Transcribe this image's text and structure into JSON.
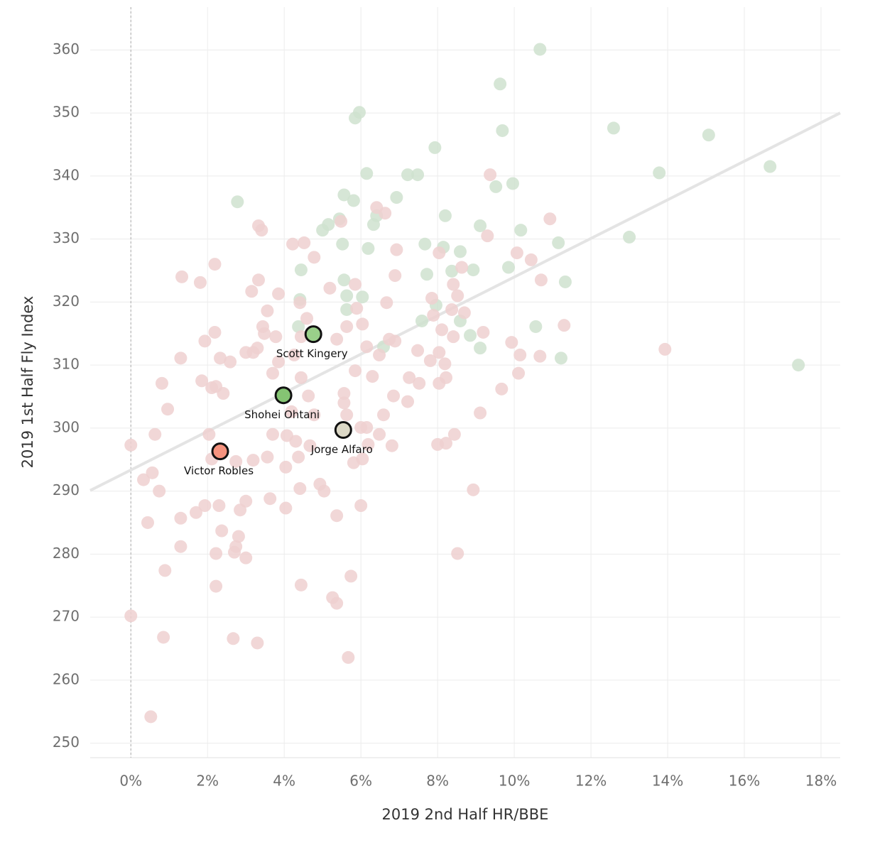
{
  "chart_data": {
    "type": "scatter",
    "x_label": "2019 2nd Half HR/BBE",
    "y_label": "2019 1st Half Fly Index",
    "xlim": [
      -1.06,
      18.5
    ],
    "ylim": [
      247.7,
      366.8
    ],
    "xticks": [
      {
        "value": 0,
        "label": "0%"
      },
      {
        "value": 2,
        "label": "2%"
      },
      {
        "value": 4,
        "label": "4%"
      },
      {
        "value": 6,
        "label": "6%"
      },
      {
        "value": 8,
        "label": "8%"
      },
      {
        "value": 10,
        "label": "10%"
      },
      {
        "value": 12,
        "label": "12%"
      },
      {
        "value": 14,
        "label": "14%"
      },
      {
        "value": 16,
        "label": "16%"
      },
      {
        "value": 18,
        "label": "18%"
      }
    ],
    "yticks": [
      250,
      260,
      270,
      280,
      290,
      300,
      310,
      320,
      330,
      340,
      350,
      360
    ],
    "grid": true,
    "reference_x": 0,
    "trend_line": {
      "color": "#e4e4e4",
      "x": [
        -1.06,
        18.5
      ],
      "values": [
        290.1,
        350.0
      ]
    },
    "series": [
      {
        "color": "#cfe2cf",
        "x": [
          10.67,
          9.63,
          9.69,
          12.59,
          15.07,
          16.67,
          13.78,
          7.48,
          9.96,
          9.52,
          7.93,
          6.93,
          2.78,
          5.81,
          5.56,
          8.2,
          5.44,
          9.11,
          10.17,
          13.0,
          11.15,
          9.85,
          8.93,
          4.44,
          7.72,
          11.33,
          8.59,
          10.56,
          8.85,
          9.11,
          11.22,
          17.41,
          4.37,
          5.96,
          5.85,
          6.15,
          7.22,
          6.41,
          5.0,
          5.15,
          5.52,
          7.67,
          8.15,
          6.19,
          8.59,
          5.56,
          5.63,
          4.41,
          6.04,
          7.59,
          7.96,
          5.63,
          8.37,
          6.59,
          6.33
        ],
        "values": [
          360.1,
          354.6,
          347.2,
          347.6,
          346.5,
          341.5,
          340.5,
          340.2,
          338.8,
          338.3,
          344.5,
          336.6,
          335.9,
          336.1,
          337.0,
          333.7,
          333.2,
          332.1,
          331.4,
          330.3,
          329.4,
          325.5,
          325.1,
          325.1,
          324.4,
          323.2,
          317.0,
          316.1,
          314.7,
          312.7,
          311.1,
          310.0,
          316.1,
          350.1,
          349.2,
          340.4,
          340.2,
          333.7,
          331.4,
          332.3,
          329.2,
          329.2,
          328.7,
          328.5,
          328.0,
          323.5,
          321.0,
          320.4,
          320.8,
          317.0,
          319.5,
          318.8,
          324.9,
          312.9,
          332.3
        ]
      },
      {
        "color": "#efd0d0",
        "x": [
          0,
          0.33,
          0.56,
          0.74,
          0.44,
          0.89,
          0,
          0.85,
          0.52,
          0.63,
          0.81,
          0.96,
          1.3,
          1.33,
          1.81,
          2.19,
          1.93,
          2.19,
          2.33,
          2.59,
          1.85,
          2.11,
          2.22,
          2.41,
          2.04,
          2.11,
          1.93,
          2.3,
          1.7,
          1.3,
          2.37,
          2.85,
          3.0,
          2.81,
          2.74,
          2.7,
          2.22,
          3.0,
          1.3,
          2.22,
          2.67,
          3.3,
          5.67,
          4.44,
          5.26,
          5.37,
          5.74,
          8.52,
          5.37,
          3.63,
          4.41,
          5.04,
          4.93,
          8.93,
          4.04,
          3.19,
          2.74,
          3.56,
          4.37,
          5.81,
          6.04,
          6.81,
          8.0,
          8.22,
          8.44,
          6.48,
          6.19,
          6.0,
          6.15,
          5.63,
          4.78,
          4.19,
          3.7,
          4.07,
          4.3,
          4.67,
          4.63,
          5.56,
          5.56,
          6.59,
          6.85,
          7.22,
          7.26,
          7.52,
          8.04,
          8.22,
          9.11,
          9.67,
          10.11,
          10.67,
          10.15,
          9.93,
          9.19,
          8.41,
          8.11,
          8.04,
          8.19,
          7.81,
          7.48,
          6.89,
          6.74,
          6.15,
          6.48,
          6.3,
          5.85,
          5.63,
          6.04,
          5.37,
          4.59,
          4.44,
          4.44,
          4.26,
          3.7,
          3.85,
          3.78,
          3.48,
          3.44,
          3.3,
          3.19,
          3.56,
          3.15,
          3.33,
          3.85,
          4.41,
          4.78,
          4.52,
          4.22,
          3.33,
          3.41,
          5.48,
          5.19,
          5.85,
          5.89,
          6.67,
          6.89,
          6.93,
          6.41,
          6.63,
          7.85,
          7.89,
          8.04,
          8.41,
          8.37,
          8.52,
          8.7,
          8.63,
          9.3,
          9.37,
          10.07,
          10.44,
          10.7,
          10.93,
          11.3,
          13.93,
          3.0,
          4.04,
          6.0
        ],
        "values": [
          297.3,
          291.8,
          292.9,
          290.0,
          285.0,
          277.4,
          270.2,
          266.8,
          254.2,
          299.0,
          307.1,
          303.0,
          311.1,
          324.0,
          323.1,
          326.0,
          313.8,
          315.2,
          311.1,
          310.5,
          307.5,
          306.4,
          306.6,
          305.5,
          299.0,
          295.1,
          287.7,
          287.7,
          286.6,
          285.7,
          283.7,
          287.0,
          288.4,
          282.8,
          281.2,
          280.3,
          280.1,
          279.4,
          281.2,
          274.9,
          266.6,
          265.9,
          263.6,
          275.1,
          273.1,
          272.2,
          276.5,
          280.1,
          286.1,
          288.8,
          290.4,
          290.0,
          291.1,
          290.2,
          293.8,
          294.9,
          294.7,
          295.4,
          295.4,
          294.5,
          295.1,
          297.2,
          297.4,
          297.6,
          299.0,
          299.0,
          297.4,
          300.1,
          300.1,
          302.1,
          302.1,
          302.6,
          299.0,
          298.8,
          297.9,
          297.2,
          305.1,
          304.0,
          305.5,
          302.1,
          305.1,
          304.2,
          308.0,
          307.1,
          307.1,
          308.0,
          302.4,
          306.2,
          308.7,
          311.4,
          311.6,
          313.6,
          315.2,
          314.5,
          315.6,
          312.0,
          310.2,
          310.7,
          312.3,
          313.8,
          314.1,
          312.9,
          311.6,
          308.2,
          309.1,
          316.1,
          316.5,
          314.1,
          317.4,
          314.5,
          308.0,
          311.6,
          308.7,
          310.5,
          314.5,
          315.0,
          316.1,
          312.7,
          312.0,
          318.6,
          321.7,
          323.5,
          321.3,
          319.9,
          327.1,
          329.4,
          329.2,
          332.1,
          331.4,
          332.8,
          322.2,
          322.8,
          319.0,
          319.9,
          324.2,
          328.3,
          335.0,
          334.1,
          320.6,
          317.9,
          327.8,
          322.8,
          318.8,
          321.0,
          318.3,
          325.5,
          330.5,
          340.2,
          327.8,
          326.7,
          323.5,
          333.2,
          316.3,
          312.5,
          312.0,
          287.3,
          287.7
        ]
      }
    ],
    "highlights": {
      "labels": [
        "Scott Kingery",
        "Shohei Ohtani",
        "Jorge Alfaro",
        "Victor Robles"
      ],
      "x": [
        4.76,
        3.98,
        5.54,
        2.33
      ],
      "values": [
        314.9,
        305.2,
        299.7,
        296.3
      ],
      "colors": [
        "#9ad08a",
        "#85c473",
        "#dcd8c6",
        "#f5937f"
      ]
    }
  }
}
